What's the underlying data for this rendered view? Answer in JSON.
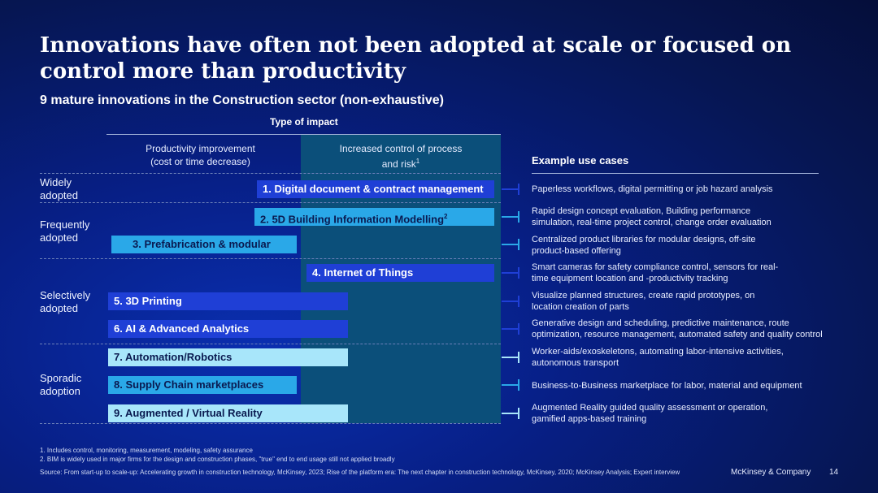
{
  "title": "Innovations have often not been adopted at scale or focused on control more than productivity",
  "subtitle": "9 mature innovations in the Construction sector (non-exhaustive)",
  "type_of_impact": "Type of impact",
  "columns": {
    "productivity": [
      "Productivity improvement",
      "(cost or time decrease)"
    ],
    "control": [
      "Increased control of process",
      "and risk",
      "1"
    ]
  },
  "example_header": "Example use cases",
  "row_labels": [
    [
      "Widely",
      "adopted"
    ],
    [
      "Frequently",
      "adopted"
    ],
    [
      "Selectively",
      "adopted"
    ],
    [
      "Sporadic",
      "adoption"
    ]
  ],
  "innovations": [
    {
      "label": "1. Digital document & contract management",
      "footnote": "",
      "color": "#1f3fd6",
      "use_case": [
        "Paperless workflows, digital permitting or job hazard analysis"
      ]
    },
    {
      "label": "2. 5D Building Information Modelling",
      "footnote": "2",
      "color": "#2aa8e8",
      "use_case": [
        "Rapid design concept evaluation, Building performance",
        "simulation, real-time project control, change order evaluation"
      ]
    },
    {
      "label": "3. Prefabrication & modular",
      "footnote": "",
      "color": "#2aa8e8",
      "use_case": [
        "Centralized product libraries for modular designs, off-site",
        "product-based offering"
      ]
    },
    {
      "label": "4. Internet of Things",
      "footnote": "",
      "color": "#1f3fd6",
      "use_case": [
        "Smart cameras for safety compliance control, sensors for real-",
        "time equipment location and -productivity tracking"
      ]
    },
    {
      "label": "5. 3D Printing",
      "footnote": "",
      "color": "#1f3fd6",
      "use_case": [
        "Visualize planned structures, create rapid prototypes, on",
        "location creation of parts"
      ]
    },
    {
      "label": "6. AI & Advanced Analytics",
      "footnote": "",
      "color": "#1f3fd6",
      "use_case": [
        "Generative design and scheduling, predictive maintenance, route",
        "optimization, resource management, automated safety and quality control"
      ]
    },
    {
      "label": "7. Automation/Robotics",
      "footnote": "",
      "color": "#a8e6fa",
      "use_case": [
        "Worker-aids/exoskeletons, automating labor-intensive activities,",
        "autonomous transport"
      ]
    },
    {
      "label": "8. Supply Chain marketplaces",
      "footnote": "",
      "color": "#2aa8e8",
      "use_case": [
        "Business-to-Business marketplace for labor, material and equipment"
      ]
    },
    {
      "label": "9. Augmented / Virtual Reality",
      "footnote": "",
      "color": "#a8e6fa",
      "use_case": [
        "Augmented Reality guided quality assessment or operation,",
        "gamified apps-based training"
      ]
    }
  ],
  "footnotes": [
    "1.    Includes control, monitoring, measurement, modeling, safety assurance",
    "2.    BIM is widely used in major firms for the design and construction phases, \"true\" end to end usage still not applied broadly"
  ],
  "source": "Source: From start-up to scale-up: Accelerating growth in construction technology, McKinsey, 2023; Rise of the platform era: The next chapter in construction technology, McKinsey, 2020; McKinsey Analysis; Expert interview",
  "brand": "McKinsey & Company",
  "page_number": "14"
}
